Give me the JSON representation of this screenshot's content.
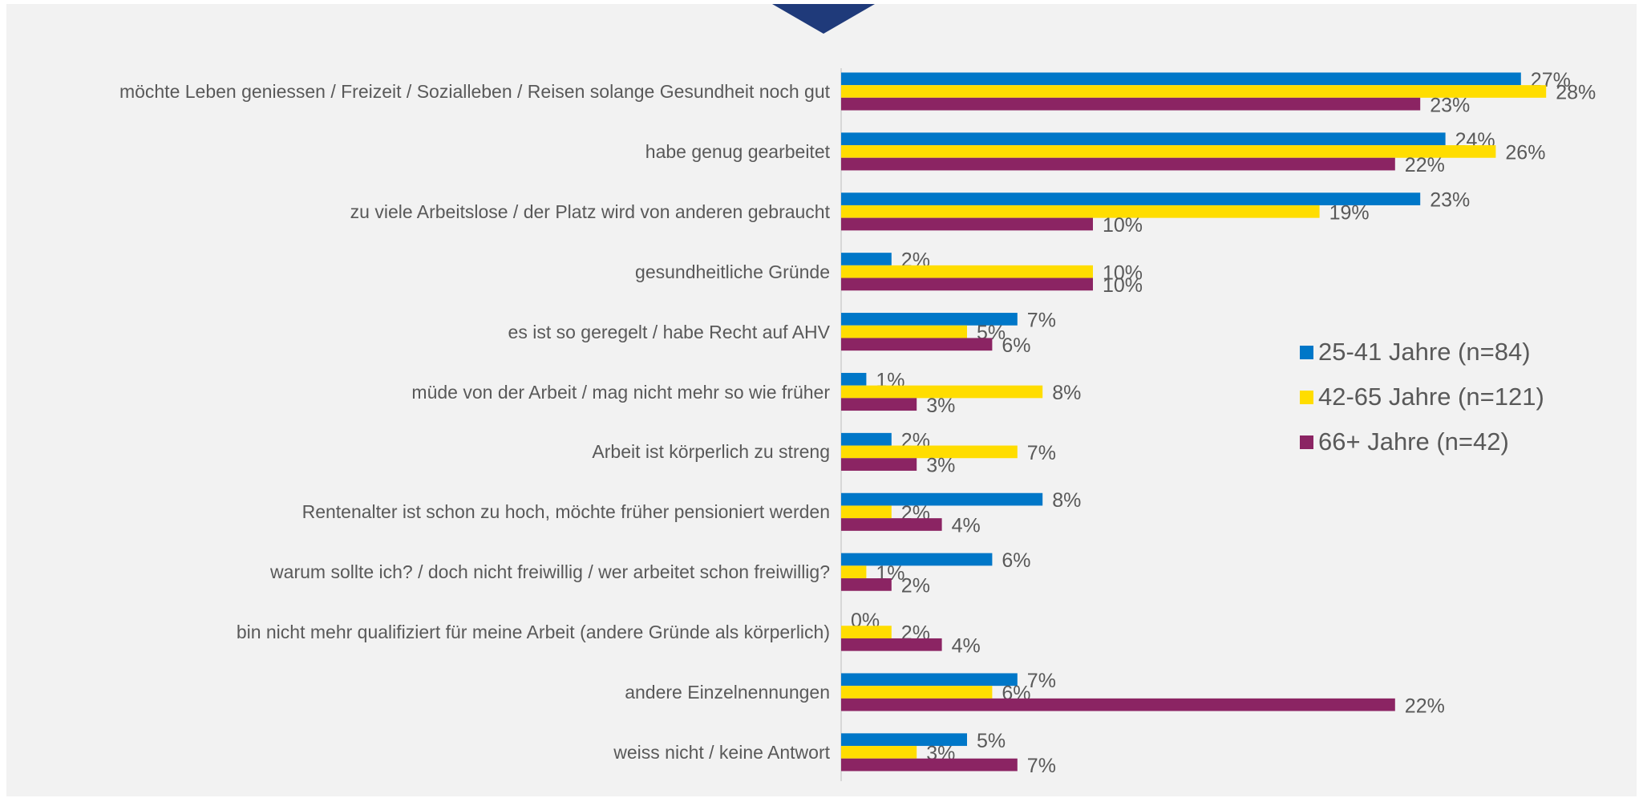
{
  "chart_data": {
    "type": "bar",
    "orientation": "horizontal",
    "categories": [
      "möchte Leben geniessen / Freizeit / Sozialleben / Reisen solange Gesundheit noch gut",
      "habe genug gearbeitet",
      "zu viele Arbeitslose / der Platz wird von anderen gebraucht",
      "gesundheitliche Gründe",
      "es ist so geregelt / habe Recht auf AHV",
      "müde von der Arbeit / mag nicht mehr so wie früher",
      "Arbeit ist körperlich zu streng",
      "Rentenalter ist schon zu hoch, möchte früher pensioniert werden",
      "warum sollte ich? / doch nicht freiwillig / wer arbeitet schon freiwillig?",
      "bin nicht mehr qualifiziert für meine Arbeit (andere Gründe als körperlich)",
      "andere Einzelnennungen",
      "weiss nicht / keine Antwort"
    ],
    "series": [
      {
        "name": "25-41 Jahre (n=84)",
        "color": "#0077c8",
        "values": [
          27,
          24,
          23,
          2,
          7,
          1,
          2,
          8,
          6,
          0,
          7,
          5
        ],
        "value_labels": [
          "27%",
          "24%",
          "23%",
          "2%",
          "7%",
          "1%",
          "2%",
          "8%",
          "6%",
          "0%",
          "7%",
          "5%"
        ]
      },
      {
        "name": "42-65 Jahre (n=121)",
        "color": "#ffdd00",
        "values": [
          28,
          26,
          19,
          10,
          5,
          8,
          7,
          2,
          1,
          2,
          6,
          3
        ],
        "value_labels": [
          "28%",
          "26%",
          "19%",
          "10%",
          "5%",
          "8%",
          "7%",
          "2%",
          "1%",
          "2%",
          "6%",
          "3%"
        ]
      },
      {
        "name": "66+ Jahre (n=42)",
        "color": "#8b2463",
        "values": [
          23,
          22,
          10,
          10,
          6,
          3,
          3,
          4,
          2,
          4,
          22,
          7
        ],
        "value_labels": [
          "23%",
          "22%",
          "10%",
          "10%",
          "6%",
          "3%",
          "3%",
          "4%",
          "2%",
          "4%",
          "22%",
          "7%"
        ]
      }
    ],
    "legend": "right"
  }
}
